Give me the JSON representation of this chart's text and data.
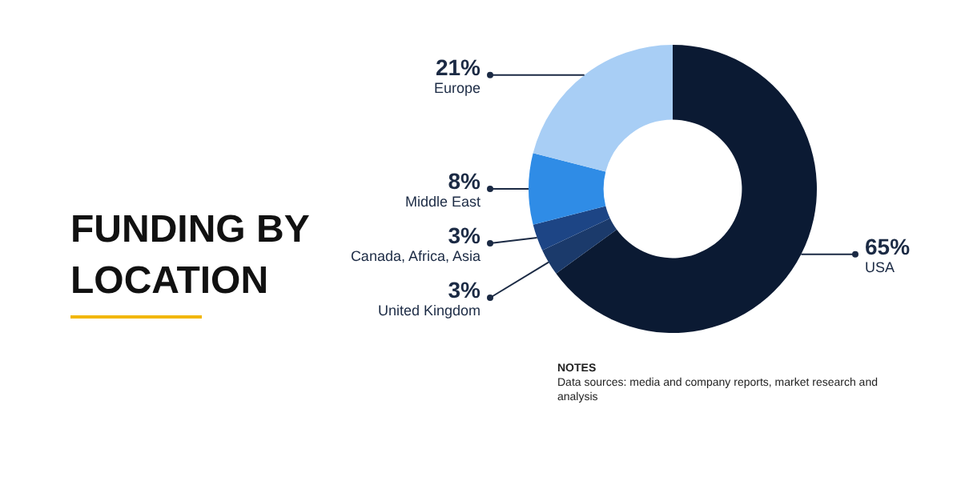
{
  "chart_data": {
    "type": "donut",
    "title": "FUNDING BY LOCATION",
    "categories": [
      "USA",
      "United Kingdom",
      "Canada, Africa, Asia",
      "Middle East",
      "Europe"
    ],
    "values": [
      65,
      3,
      3,
      8,
      21
    ],
    "value_labels": [
      "65%",
      "3%",
      "3%",
      "8%",
      "21%"
    ],
    "colors": [
      "#0b1a33",
      "#1b3a6b",
      "#1d4585",
      "#2f8ce6",
      "#a8cef5"
    ],
    "legend": false,
    "annotations": [
      "NOTES",
      "Data sources: media and company reports, market research and analysis"
    ]
  }
}
